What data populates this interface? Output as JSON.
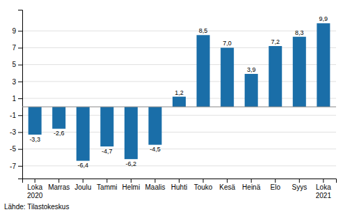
{
  "chart_data": {
    "type": "bar",
    "categories": [
      "Loka\n2020",
      "Marras",
      "Joulu",
      "Tammi",
      "Helmi",
      "Maalis",
      "Huhti",
      "Touko",
      "Kesä",
      "Heinä",
      "Elo",
      "Syys",
      "Loka\n2021"
    ],
    "values": [
      -3.3,
      -2.6,
      -6.4,
      -4.7,
      -6.2,
      -4.5,
      1.2,
      8.5,
      7.0,
      3.9,
      7.2,
      8.3,
      9.9
    ],
    "value_labels": [
      "-3,3",
      "-2,6",
      "-6,4",
      "-4,7",
      "-6,2",
      "-4,5",
      "1,2",
      "8,5",
      "7,0",
      "3,9",
      "7,2",
      "8,3",
      "9,9"
    ],
    "data_labels": true,
    "color": "#1a6ea8",
    "ylim": [
      -8.5,
      11.5
    ],
    "yticks": [
      -7,
      -5,
      -3,
      -1,
      1,
      3,
      5,
      7,
      9
    ],
    "grid": true,
    "annotations": [
      "Lähde: Tilastokeskus"
    ]
  }
}
